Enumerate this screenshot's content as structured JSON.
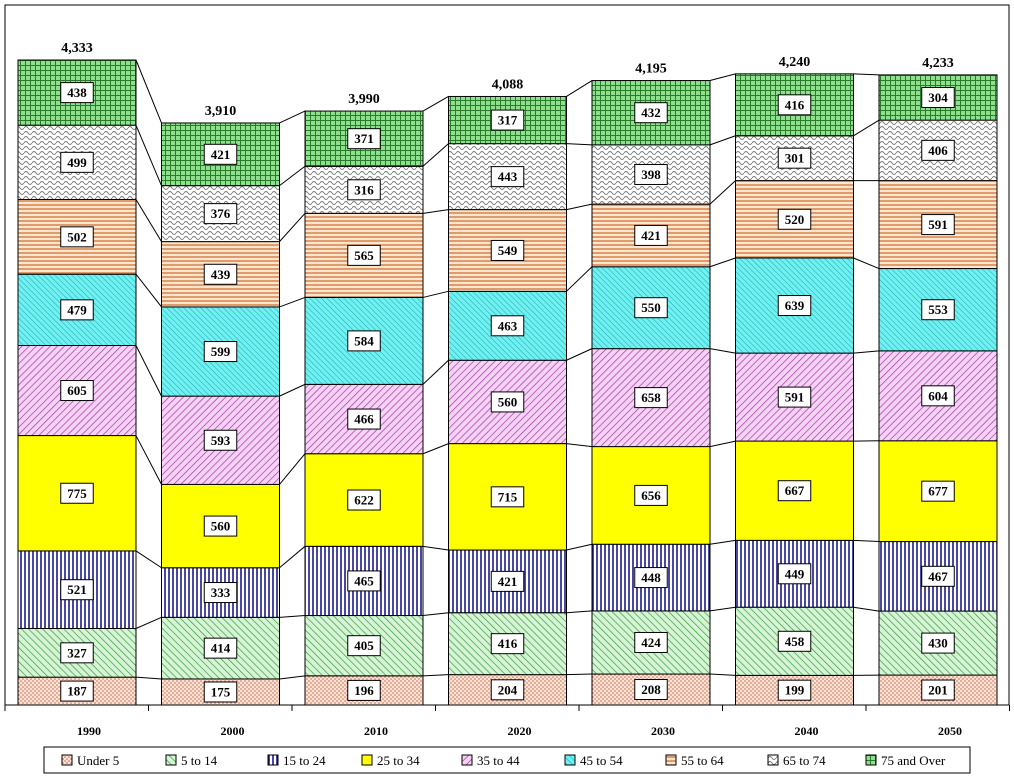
{
  "chart_data": {
    "type": "bar",
    "stacked": true,
    "title": "",
    "xlabel": "",
    "ylabel": "",
    "categories": [
      "1990",
      "2000",
      "2010",
      "2020",
      "2030",
      "2040",
      "2050"
    ],
    "totals": [
      "4,333",
      "3,910",
      "3,990",
      "4,088",
      "4,195",
      "4,240",
      "4,233"
    ],
    "ylim": [
      0,
      4600
    ],
    "grid": false,
    "legend_position": "bottom",
    "series": [
      {
        "name": "Under 5",
        "values": [
          187,
          175,
          196,
          204,
          208,
          199,
          201
        ],
        "color": "#ffd7c2",
        "pattern": "dots"
      },
      {
        "name": "5 to 14",
        "values": [
          327,
          414,
          405,
          416,
          424,
          458,
          430
        ],
        "color": "#c8f2c8",
        "pattern": "diag-up"
      },
      {
        "name": "15 to 24",
        "values": [
          521,
          333,
          465,
          421,
          448,
          449,
          467
        ],
        "color": "#ffffff",
        "pattern": "vlines-navy"
      },
      {
        "name": "25 to 34",
        "values": [
          775,
          560,
          622,
          715,
          656,
          667,
          677
        ],
        "color": "#ffff00",
        "pattern": "solid"
      },
      {
        "name": "35 to 44",
        "values": [
          605,
          593,
          466,
          560,
          658,
          591,
          604
        ],
        "color": "#f4c6f4",
        "pattern": "diag-down"
      },
      {
        "name": "45 to 54",
        "values": [
          479,
          599,
          584,
          463,
          550,
          639,
          553
        ],
        "color": "#66eeee",
        "pattern": "diag-up-fine"
      },
      {
        "name": "55 to 64",
        "values": [
          502,
          439,
          565,
          549,
          421,
          520,
          591
        ],
        "color": "#ffe0c0",
        "pattern": "hlines"
      },
      {
        "name": "65 to 74",
        "values": [
          499,
          376,
          316,
          443,
          398,
          301,
          406
        ],
        "color": "#ffffff",
        "pattern": "waves"
      },
      {
        "name": "75 and Over",
        "values": [
          438,
          421,
          371,
          317,
          432,
          416,
          304
        ],
        "color": "#88dd88",
        "pattern": "grid"
      }
    ]
  }
}
